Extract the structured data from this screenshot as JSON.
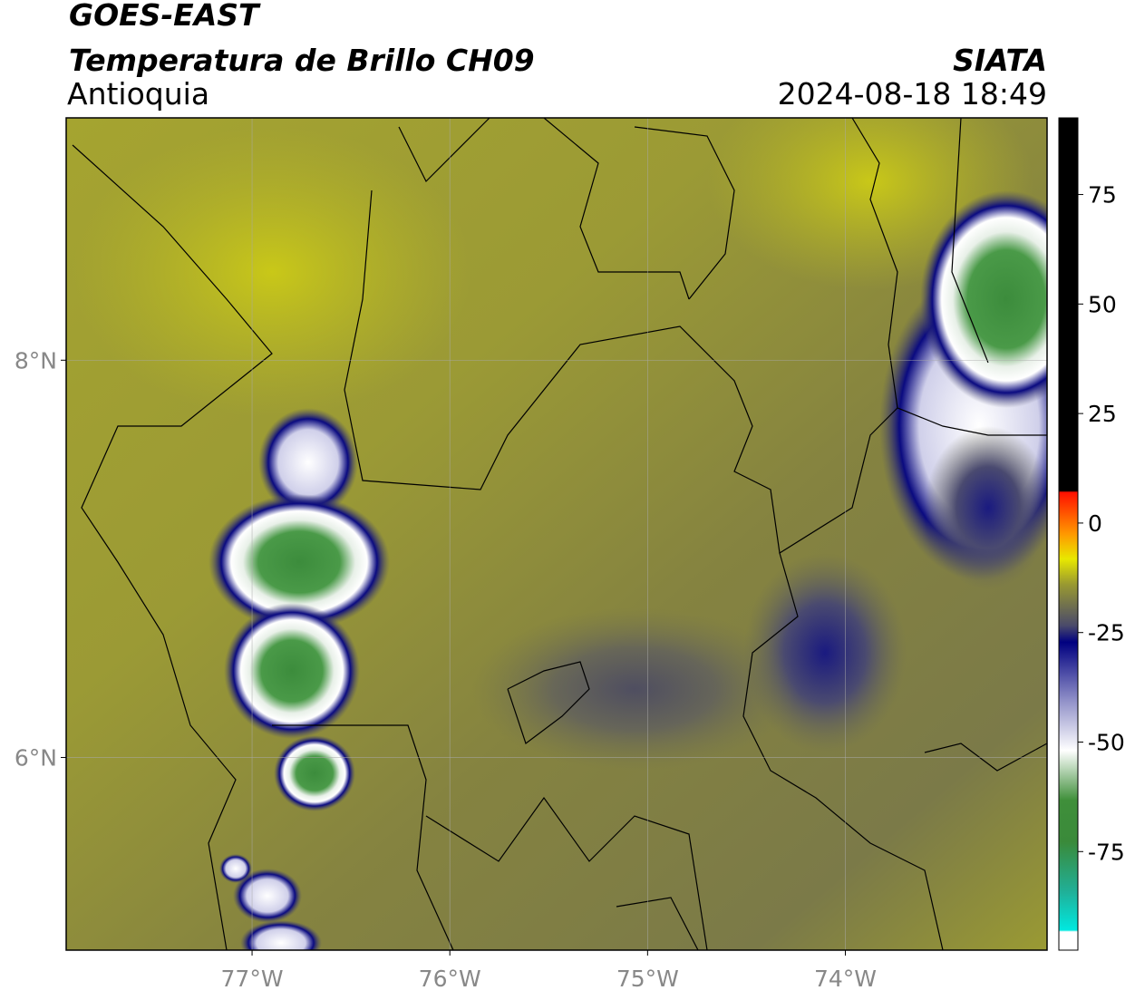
{
  "header": {
    "satellite": "GOES-EAST",
    "product": "Temperatura de Brillo CH09",
    "source": "SIATA",
    "region": "Antioquia",
    "datetime": "2024-08-18 18:49"
  },
  "map": {
    "lonlim": [
      -77.94,
      -72.98
    ],
    "latlim": [
      5.03,
      9.22
    ],
    "lonticks": [
      {
        "value": -77,
        "label": "77°W"
      },
      {
        "value": -76,
        "label": "76°W"
      },
      {
        "value": -75,
        "label": "75°W"
      },
      {
        "value": -74,
        "label": "74°W"
      }
    ],
    "latticks": [
      {
        "value": 8,
        "label": "8°N"
      },
      {
        "value": 6,
        "label": "6°N"
      }
    ],
    "grid": true
  },
  "colorbar": {
    "lim": [
      -97.5,
      92.5
    ],
    "ticks": [
      75,
      50,
      25,
      0,
      -25,
      -50,
      -75
    ]
  }
}
